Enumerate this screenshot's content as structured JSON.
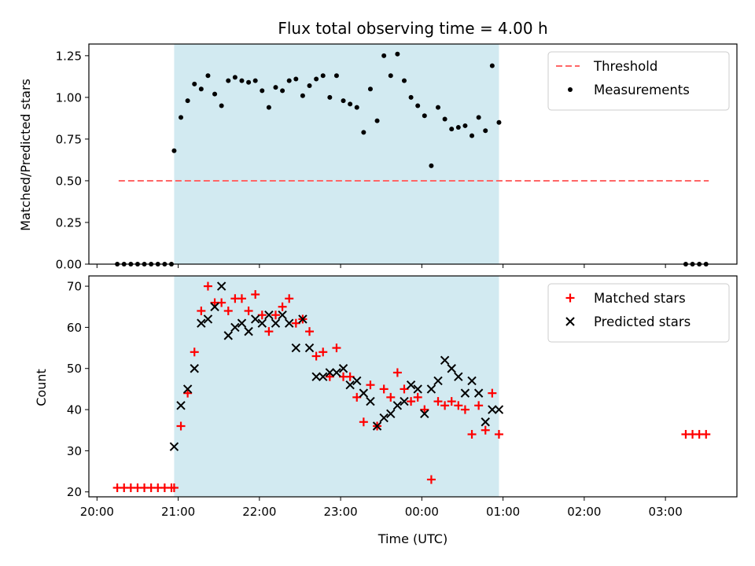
{
  "chart_data": {
    "title": "Flux total observing time = 4.00 h",
    "xlabel": "Time (UTC)",
    "x_ticks": [
      "20:00",
      "21:00",
      "22:00",
      "23:00",
      "00:00",
      "01:00",
      "02:00",
      "03:00"
    ],
    "x_tick_hours": [
      0,
      1,
      2,
      3,
      4,
      5,
      6,
      7
    ],
    "x_range_hours_after_2000": [
      -0.1,
      7.88
    ],
    "observing_window": {
      "start": "20:57",
      "end": "00:57",
      "color": "#add8e6"
    },
    "panels": [
      {
        "type": "scatter",
        "ylabel": "Matched/Predicted stars",
        "ylim": [
          0,
          1.32
        ],
        "y_ticks": [
          "0.00",
          "0.25",
          "0.50",
          "0.75",
          "1.00",
          "1.25"
        ],
        "y_tick_values": [
          0,
          0.25,
          0.5,
          0.75,
          1.0,
          1.25
        ],
        "threshold": {
          "name": "Threshold",
          "value": 0.5,
          "x_start": "20:16",
          "x_end": "03:32",
          "color": "#ff6666"
        },
        "series": [
          {
            "name": "Measurements",
            "color": "#000000",
            "x": [
              "20:15",
              "20:20",
              "20:25",
              "20:30",
              "20:35",
              "20:40",
              "20:45",
              "20:50",
              "20:55",
              "20:57",
              "21:02",
              "21:07",
              "21:12",
              "21:17",
              "21:22",
              "21:27",
              "21:32",
              "21:37",
              "21:42",
              "21:47",
              "21:52",
              "21:57",
              "22:02",
              "22:07",
              "22:12",
              "22:17",
              "22:22",
              "22:27",
              "22:32",
              "22:37",
              "22:42",
              "22:47",
              "22:52",
              "22:57",
              "23:02",
              "23:07",
              "23:12",
              "23:17",
              "23:22",
              "23:27",
              "23:32",
              "23:37",
              "23:42",
              "23:47",
              "23:52",
              "23:57",
              "00:02",
              "00:07",
              "00:12",
              "00:17",
              "00:22",
              "00:27",
              "00:32",
              "00:37",
              "00:42",
              "00:47",
              "00:52",
              "00:57",
              "03:15",
              "03:20",
              "03:25",
              "03:30"
            ],
            "y": [
              0,
              0,
              0,
              0,
              0,
              0,
              0,
              0,
              0,
              0.68,
              0.88,
              0.98,
              1.08,
              1.05,
              1.13,
              1.02,
              0.95,
              1.1,
              1.12,
              1.1,
              1.09,
              1.1,
              1.04,
              0.94,
              1.06,
              1.04,
              1.1,
              1.11,
              1.01,
              1.07,
              1.11,
              1.13,
              1.0,
              1.13,
              0.98,
              0.96,
              0.94,
              0.79,
              1.05,
              0.86,
              1.25,
              1.13,
              1.26,
              1.1,
              1.0,
              0.95,
              0.89,
              0.59,
              0.94,
              0.87,
              0.81,
              0.82,
              0.83,
              0.77,
              0.88,
              0.8,
              1.19,
              0.85,
              0,
              0,
              0,
              0
            ]
          }
        ],
        "legend": [
          {
            "label": "Threshold",
            "marker": "dashed-line",
            "color": "#ff6666"
          },
          {
            "label": "Measurements",
            "marker": "dot",
            "color": "#000000"
          }
        ],
        "legend_position": "top-right"
      },
      {
        "type": "scatter",
        "ylabel": "Count",
        "ylim": [
          18.8,
          72.5
        ],
        "y_ticks": [
          "20",
          "30",
          "40",
          "50",
          "60",
          "70"
        ],
        "y_tick_values": [
          20,
          30,
          40,
          50,
          60,
          70
        ],
        "series": [
          {
            "name": "Matched stars",
            "marker": "plus",
            "color": "#ff0000",
            "x": [
              "20:15",
              "20:20",
              "20:25",
              "20:30",
              "20:35",
              "20:40",
              "20:45",
              "20:50",
              "20:55",
              "20:57",
              "21:02",
              "21:07",
              "21:12",
              "21:17",
              "21:22",
              "21:27",
              "21:32",
              "21:37",
              "21:42",
              "21:47",
              "21:52",
              "21:57",
              "22:02",
              "22:07",
              "22:12",
              "22:17",
              "22:22",
              "22:27",
              "22:32",
              "22:37",
              "22:42",
              "22:47",
              "22:52",
              "22:57",
              "23:02",
              "23:07",
              "23:12",
              "23:17",
              "23:22",
              "23:27",
              "23:32",
              "23:37",
              "23:42",
              "23:47",
              "23:52",
              "23:57",
              "00:02",
              "00:07",
              "00:12",
              "00:17",
              "00:22",
              "00:27",
              "00:32",
              "00:37",
              "00:42",
              "00:47",
              "00:52",
              "00:57",
              "03:15",
              "03:20",
              "03:25",
              "03:30"
            ],
            "y": [
              21,
              21,
              21,
              21,
              21,
              21,
              21,
              21,
              21,
              21,
              36,
              44,
              54,
              64,
              70,
              66,
              66,
              64,
              67,
              67,
              64,
              68,
              63,
              59,
              63,
              65,
              67,
              61,
              62,
              59,
              53,
              54,
              48,
              55,
              48,
              48,
              43,
              37,
              46,
              36,
              45,
              43,
              49,
              45,
              42,
              43,
              40,
              23,
              42,
              41,
              42,
              41,
              40,
              34,
              41,
              35,
              44,
              34,
              34,
              34,
              34,
              34
            ]
          },
          {
            "name": "Predicted stars",
            "marker": "x",
            "color": "#000000",
            "x": [
              "20:57",
              "21:02",
              "21:07",
              "21:12",
              "21:17",
              "21:22",
              "21:27",
              "21:32",
              "21:37",
              "21:42",
              "21:47",
              "21:52",
              "21:57",
              "22:02",
              "22:07",
              "22:12",
              "22:17",
              "22:22",
              "22:27",
              "22:32",
              "22:37",
              "22:42",
              "22:47",
              "22:52",
              "22:57",
              "23:02",
              "23:07",
              "23:12",
              "23:17",
              "23:22",
              "23:27",
              "23:32",
              "23:37",
              "23:42",
              "23:47",
              "23:52",
              "23:57",
              "00:02",
              "00:07",
              "00:12",
              "00:17",
              "00:22",
              "00:27",
              "00:32",
              "00:37",
              "00:42",
              "00:47",
              "00:52",
              "00:57"
            ],
            "y": [
              31,
              41,
              45,
              50,
              61,
              62,
              65,
              70,
              58,
              60,
              61,
              59,
              62,
              61,
              63,
              61,
              63,
              61,
              55,
              62,
              55,
              48,
              48,
              49,
              49,
              50,
              46,
              47,
              44,
              42,
              36,
              38,
              39,
              41,
              42,
              46,
              45,
              39,
              45,
              47,
              52,
              50,
              48,
              44,
              47,
              44,
              37,
              40,
              40
            ]
          }
        ],
        "legend": [
          {
            "label": "Matched stars",
            "marker": "plus",
            "color": "#ff0000"
          },
          {
            "label": "Predicted stars",
            "marker": "x",
            "color": "#000000"
          }
        ],
        "legend_position": "top-right"
      }
    ]
  }
}
